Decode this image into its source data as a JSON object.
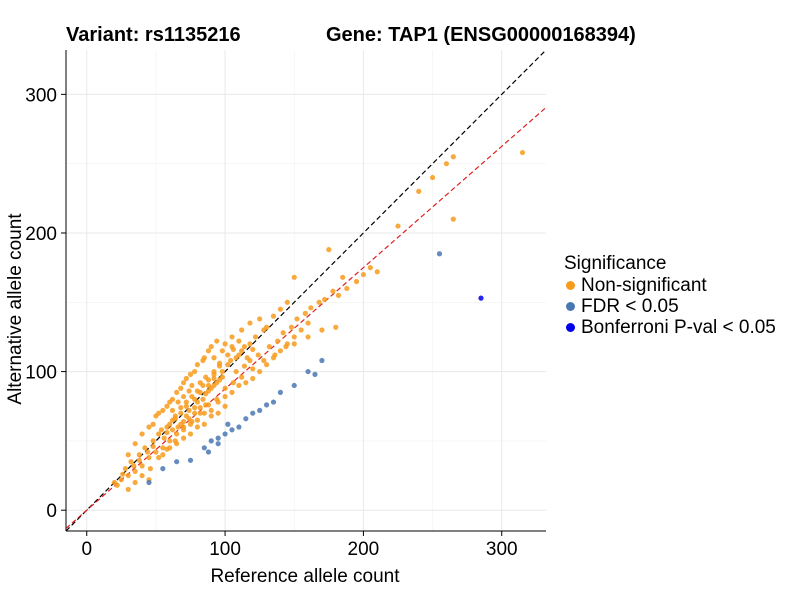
{
  "chart_data": {
    "type": "scatter",
    "title_left": "Variant: rs1135216",
    "title_right": "Gene: TAP1 (ENSG00000168394)",
    "xlabel": "Reference allele count",
    "ylabel": "Alternative allele count",
    "xlim": [
      -15,
      332
    ],
    "ylim": [
      -15,
      332
    ],
    "x_ticks": [
      0,
      100,
      200,
      300
    ],
    "y_ticks": [
      0,
      100,
      200,
      300
    ],
    "grid": true,
    "reference_lines": [
      {
        "name": "identity",
        "slope": 1,
        "intercept": 0,
        "color": "#000000",
        "style": "dashed"
      },
      {
        "name": "fit",
        "slope": 0.875,
        "intercept": 0,
        "color": "#e02020",
        "style": "dashed"
      }
    ],
    "legend": {
      "title": "Significance",
      "placement": "right",
      "entries": [
        {
          "label": "Non-significant",
          "color": "#f89b1c"
        },
        {
          "label": "FDR < 0.05",
          "color": "#4a77b4"
        },
        {
          "label": "Bonferroni P-val < 0.05",
          "color": "#0000ee"
        }
      ]
    },
    "series": [
      {
        "name": "Non-significant",
        "color": "#f89b1c",
        "points": [
          [
            20,
            20
          ],
          [
            25,
            22
          ],
          [
            28,
            30
          ],
          [
            30,
            25
          ],
          [
            32,
            35
          ],
          [
            35,
            28
          ],
          [
            38,
            40
          ],
          [
            40,
            32
          ],
          [
            42,
            45
          ],
          [
            45,
            38
          ],
          [
            48,
            50
          ],
          [
            50,
            42
          ],
          [
            52,
            55
          ],
          [
            55,
            45
          ],
          [
            58,
            60
          ],
          [
            60,
            50
          ],
          [
            62,
            65
          ],
          [
            65,
            55
          ],
          [
            68,
            70
          ],
          [
            70,
            58
          ],
          [
            72,
            75
          ],
          [
            75,
            62
          ],
          [
            78,
            80
          ],
          [
            80,
            65
          ],
          [
            82,
            85
          ],
          [
            85,
            70
          ],
          [
            88,
            90
          ],
          [
            90,
            72
          ],
          [
            92,
            95
          ],
          [
            95,
            78
          ],
          [
            98,
            100
          ],
          [
            100,
            82
          ],
          [
            102,
            105
          ],
          [
            105,
            85
          ],
          [
            108,
            110
          ],
          [
            110,
            90
          ],
          [
            112,
            115
          ],
          [
            115,
            92
          ],
          [
            118,
            120
          ],
          [
            120,
            95
          ],
          [
            122,
            125
          ],
          [
            125,
            100
          ],
          [
            128,
            130
          ],
          [
            130,
            105
          ],
          [
            135,
            110
          ],
          [
            140,
            115
          ],
          [
            145,
            120
          ],
          [
            150,
            125
          ],
          [
            155,
            130
          ],
          [
            160,
            135
          ],
          [
            45,
            60
          ],
          [
            50,
            68
          ],
          [
            55,
            72
          ],
          [
            60,
            78
          ],
          [
            65,
            85
          ],
          [
            70,
            92
          ],
          [
            75,
            98
          ],
          [
            80,
            105
          ],
          [
            85,
            110
          ],
          [
            90,
            118
          ],
          [
            55,
            40
          ],
          [
            60,
            45
          ],
          [
            65,
            48
          ],
          [
            70,
            52
          ],
          [
            75,
            55
          ],
          [
            80,
            60
          ],
          [
            85,
            62
          ],
          [
            90,
            68
          ],
          [
            95,
            70
          ],
          [
            100,
            75
          ],
          [
            62,
            80
          ],
          [
            68,
            88
          ],
          [
            72,
            95
          ],
          [
            78,
            100
          ],
          [
            84,
            108
          ],
          [
            88,
            115
          ],
          [
            94,
            122
          ],
          [
            100,
            120
          ],
          [
            105,
            118
          ],
          [
            110,
            122
          ],
          [
            40,
            55
          ],
          [
            35,
            48
          ],
          [
            30,
            40
          ],
          [
            48,
            62
          ],
          [
            52,
            70
          ],
          [
            58,
            75
          ],
          [
            62,
            72
          ],
          [
            66,
            78
          ],
          [
            70,
            82
          ],
          [
            74,
            86
          ],
          [
            76,
            90
          ],
          [
            82,
            92
          ],
          [
            86,
            96
          ],
          [
            92,
            98
          ],
          [
            96,
            104
          ],
          [
            104,
            108
          ],
          [
            108,
            100
          ],
          [
            114,
            104
          ],
          [
            118,
            108
          ],
          [
            124,
            112
          ],
          [
            132,
            118
          ],
          [
            138,
            122
          ],
          [
            142,
            128
          ],
          [
            148,
            132
          ],
          [
            152,
            138
          ],
          [
            158,
            142
          ],
          [
            162,
            146
          ],
          [
            168,
            150
          ],
          [
            172,
            152
          ],
          [
            178,
            158
          ],
          [
            182,
            155
          ],
          [
            188,
            160
          ],
          [
            195,
            165
          ],
          [
            200,
            170
          ],
          [
            205,
            175
          ],
          [
            210,
            172
          ],
          [
            185,
            168
          ],
          [
            175,
            188
          ],
          [
            225,
            205
          ],
          [
            150,
            168
          ],
          [
            125,
            138
          ],
          [
            130,
            132
          ],
          [
            135,
            140
          ],
          [
            140,
            145
          ],
          [
            145,
            150
          ],
          [
            112,
            130
          ],
          [
            118,
            135
          ],
          [
            105,
            125
          ],
          [
            98,
            115
          ],
          [
            92,
            110
          ],
          [
            46,
            30
          ],
          [
            52,
            38
          ],
          [
            58,
            44
          ],
          [
            64,
            50
          ],
          [
            70,
            60
          ],
          [
            76,
            64
          ],
          [
            82,
            70
          ],
          [
            88,
            76
          ],
          [
            94,
            80
          ],
          [
            100,
            88
          ],
          [
            106,
            92
          ],
          [
            112,
            96
          ],
          [
            120,
            102
          ],
          [
            128,
            108
          ],
          [
            136,
            112
          ],
          [
            144,
            118
          ],
          [
            150,
            120
          ],
          [
            160,
            125
          ],
          [
            170,
            130
          ],
          [
            180,
            132
          ],
          [
            64,
            66
          ],
          [
            68,
            62
          ],
          [
            72,
            68
          ],
          [
            74,
            72
          ],
          [
            78,
            74
          ],
          [
            80,
            78
          ],
          [
            84,
            80
          ],
          [
            86,
            84
          ],
          [
            88,
            86
          ],
          [
            90,
            88
          ],
          [
            92,
            90
          ],
          [
            94,
            92
          ],
          [
            96,
            94
          ],
          [
            98,
            96
          ],
          [
            66,
            60
          ],
          [
            70,
            64
          ],
          [
            74,
            66
          ],
          [
            78,
            70
          ],
          [
            82,
            74
          ],
          [
            86,
            76
          ],
          [
            62,
            58
          ],
          [
            58,
            56
          ],
          [
            56,
            52
          ],
          [
            54,
            58
          ],
          [
            60,
            62
          ],
          [
            64,
            68
          ],
          [
            68,
            74
          ],
          [
            72,
            78
          ],
          [
            76,
            82
          ],
          [
            80,
            86
          ],
          [
            84,
            90
          ],
          [
            88,
            94
          ],
          [
            92,
            100
          ],
          [
            96,
            106
          ],
          [
            102,
            112
          ],
          [
            106,
            116
          ],
          [
            110,
            112
          ],
          [
            114,
            118
          ],
          [
            116,
            110
          ],
          [
            120,
            116
          ],
          [
            30,
            15
          ],
          [
            35,
            20
          ],
          [
            40,
            25
          ],
          [
            45,
            22
          ],
          [
            22,
            18
          ],
          [
            26,
            26
          ],
          [
            34,
            32
          ],
          [
            38,
            36
          ],
          [
            44,
            42
          ],
          [
            48,
            46
          ],
          [
            240,
            230
          ],
          [
            260,
            250
          ],
          [
            265,
            255
          ],
          [
            250,
            240
          ],
          [
            265,
            210
          ],
          [
            315,
            258
          ]
        ]
      },
      {
        "name": "FDR < 0.05",
        "color": "#4a77b4",
        "points": [
          [
            45,
            20
          ],
          [
            55,
            30
          ],
          [
            65,
            35
          ],
          [
            75,
            36
          ],
          [
            85,
            45
          ],
          [
            90,
            50
          ],
          [
            95,
            52
          ],
          [
            100,
            55
          ],
          [
            105,
            58
          ],
          [
            110,
            60
          ],
          [
            120,
            70
          ],
          [
            125,
            72
          ],
          [
            135,
            78
          ],
          [
            140,
            85
          ],
          [
            150,
            90
          ],
          [
            160,
            100
          ],
          [
            165,
            98
          ],
          [
            170,
            108
          ],
          [
            255,
            185
          ],
          [
            95,
            48
          ],
          [
            88,
            42
          ],
          [
            102,
            62
          ],
          [
            115,
            66
          ],
          [
            130,
            76
          ]
        ]
      },
      {
        "name": "Bonferroni P-val < 0.05",
        "color": "#0000ee",
        "points": [
          [
            285,
            153
          ]
        ]
      }
    ]
  }
}
